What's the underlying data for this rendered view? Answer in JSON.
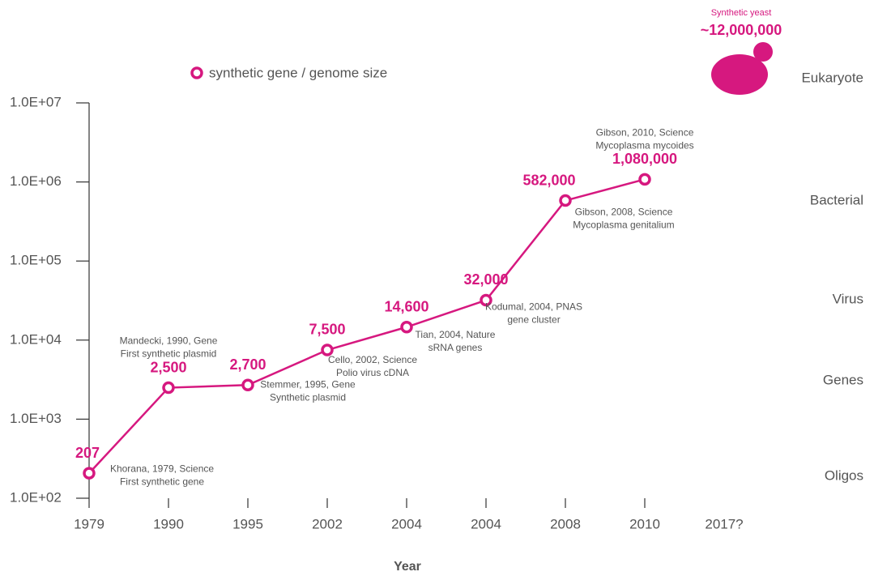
{
  "chart_data": {
    "type": "line",
    "x_label": "Year",
    "categories": [
      "1979",
      "1990",
      "1995",
      "2002",
      "2004",
      "2004",
      "2008",
      "2010",
      "2017?"
    ],
    "series": [
      {
        "name": "synthetic gene / genome size",
        "color": "#d6187f",
        "values": [
          207,
          2500,
          2700,
          7500,
          14600,
          32000,
          582000,
          1080000,
          null
        ],
        "value_labels": [
          "207",
          "2,500",
          "2,700",
          "7,500",
          "14,600",
          "32,000",
          "582,000",
          "1,080,000",
          null
        ]
      }
    ],
    "notes": [
      [
        "Khorana, 1979, Science",
        "First synthetic gene"
      ],
      [
        "Mandecki, 1990, Gene",
        "First synthetic plasmid"
      ],
      [
        "Stemmer, 1995, Gene",
        "Synthetic plasmid"
      ],
      [
        "Cello, 2002, Science",
        "Polio virus cDNA"
      ],
      [
        "Tian, 2004, Nature",
        "sRNA genes"
      ],
      [
        "Kodumal, 2004, PNAS",
        "gene cluster"
      ],
      [
        "Gibson, 2008, Science",
        "Mycoplasma genitalium"
      ],
      [
        "Gibson, 2010, Science",
        "Mycoplasma mycoides"
      ],
      null
    ],
    "yeast": {
      "text": "Synthetic yeast",
      "value": 12000000,
      "value_label": "~12,000,000"
    },
    "right_labels": [
      "Eukaryote",
      "Bacterial",
      "Virus",
      "Genes",
      "Oligos"
    ],
    "y_scale": "log",
    "ylim": [
      100,
      10000000
    ],
    "yticks": [
      {
        "value": 100,
        "label": "1.0E+02"
      },
      {
        "value": 1000,
        "label": "1.0E+03"
      },
      {
        "value": 10000,
        "label": "1.0E+04"
      },
      {
        "value": 100000,
        "label": "1.0E+05"
      },
      {
        "value": 1000000,
        "label": "1.0E+06"
      },
      {
        "value": 10000000,
        "label": "1.0E+07"
      }
    ]
  }
}
